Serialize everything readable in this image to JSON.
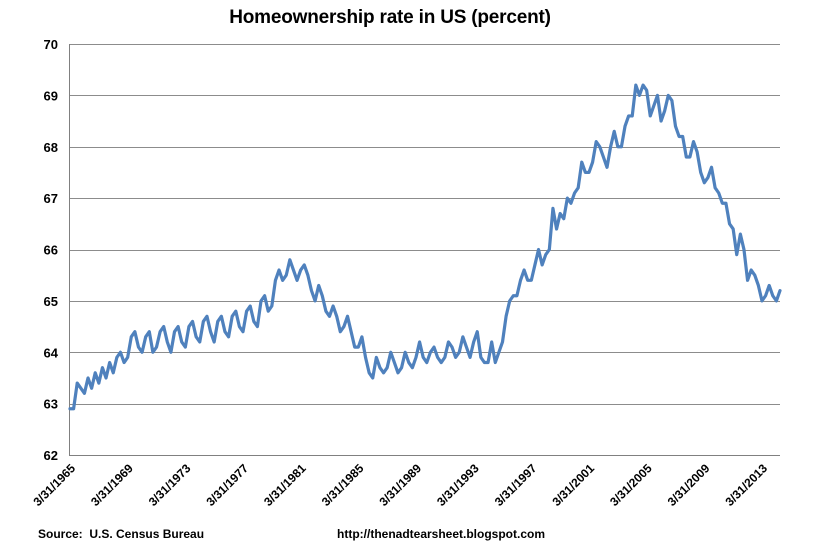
{
  "chart_data": {
    "type": "line",
    "title": "Homeownership rate in US (percent)",
    "xlabel": "",
    "ylabel": "",
    "ylim": [
      62,
      70
    ],
    "y_ticks": [
      62,
      63,
      64,
      65,
      66,
      67,
      68,
      69,
      70
    ],
    "grid": "horizontal",
    "legend": "none",
    "frequency": "quarterly",
    "x_start": "3/31/1965",
    "x_end": "6/30/2014",
    "x_tick_labels": [
      "3/31/1965",
      "3/31/1969",
      "3/31/1973",
      "3/31/1977",
      "3/31/1981",
      "3/31/1985",
      "3/31/1989",
      "3/31/1993",
      "3/31/1997",
      "3/31/2001",
      "3/31/2005",
      "3/31/2009",
      "3/31/2013"
    ],
    "x_tick_every": 16,
    "line_color": "#4F81BD",
    "gridline_color": "#8C8C8C",
    "axis_color": "#808080",
    "series": [
      {
        "name": "Homeownership rate (percent)",
        "values": [
          62.9,
          62.9,
          63.4,
          63.3,
          63.2,
          63.5,
          63.3,
          63.6,
          63.4,
          63.7,
          63.5,
          63.8,
          63.6,
          63.9,
          64.0,
          63.8,
          63.9,
          64.3,
          64.4,
          64.1,
          64.0,
          64.3,
          64.4,
          64.0,
          64.1,
          64.4,
          64.5,
          64.2,
          64.0,
          64.4,
          64.5,
          64.2,
          64.1,
          64.5,
          64.6,
          64.3,
          64.2,
          64.6,
          64.7,
          64.4,
          64.2,
          64.6,
          64.7,
          64.4,
          64.3,
          64.7,
          64.8,
          64.5,
          64.4,
          64.8,
          64.9,
          64.6,
          64.5,
          65.0,
          65.1,
          64.8,
          64.9,
          65.4,
          65.6,
          65.4,
          65.5,
          65.8,
          65.6,
          65.4,
          65.6,
          65.7,
          65.5,
          65.2,
          65.0,
          65.3,
          65.1,
          64.8,
          64.7,
          64.9,
          64.7,
          64.4,
          64.5,
          64.7,
          64.4,
          64.1,
          64.1,
          64.3,
          63.9,
          63.6,
          63.5,
          63.9,
          63.7,
          63.6,
          63.7,
          64.0,
          63.8,
          63.6,
          63.7,
          64.0,
          63.8,
          63.7,
          63.9,
          64.2,
          63.9,
          63.8,
          64.0,
          64.1,
          63.9,
          63.8,
          63.9,
          64.2,
          64.1,
          63.9,
          64.0,
          64.3,
          64.1,
          63.9,
          64.2,
          64.4,
          63.9,
          63.8,
          63.8,
          64.2,
          63.8,
          64.0,
          64.2,
          64.7,
          65.0,
          65.1,
          65.1,
          65.4,
          65.6,
          65.4,
          65.4,
          65.7,
          66.0,
          65.7,
          65.9,
          66.0,
          66.8,
          66.4,
          66.7,
          66.6,
          67.0,
          66.9,
          67.1,
          67.2,
          67.7,
          67.5,
          67.5,
          67.7,
          68.1,
          68.0,
          67.8,
          67.6,
          68.0,
          68.3,
          68.0,
          68.0,
          68.4,
          68.6,
          68.6,
          69.2,
          69.0,
          69.2,
          69.1,
          68.6,
          68.8,
          69.0,
          68.5,
          68.7,
          69.0,
          68.9,
          68.4,
          68.2,
          68.2,
          67.8,
          67.8,
          68.1,
          67.9,
          67.5,
          67.3,
          67.4,
          67.6,
          67.2,
          67.1,
          66.9,
          66.9,
          66.5,
          66.4,
          65.9,
          66.3,
          66.0,
          65.4,
          65.6,
          65.5,
          65.3,
          65.0,
          65.1,
          65.3,
          65.1,
          65.0,
          65.2
        ]
      }
    ]
  },
  "footer": {
    "source_label": "Source:  U.S. Census Bureau",
    "url": "http://thenadtearsheet.blogspot.com"
  }
}
